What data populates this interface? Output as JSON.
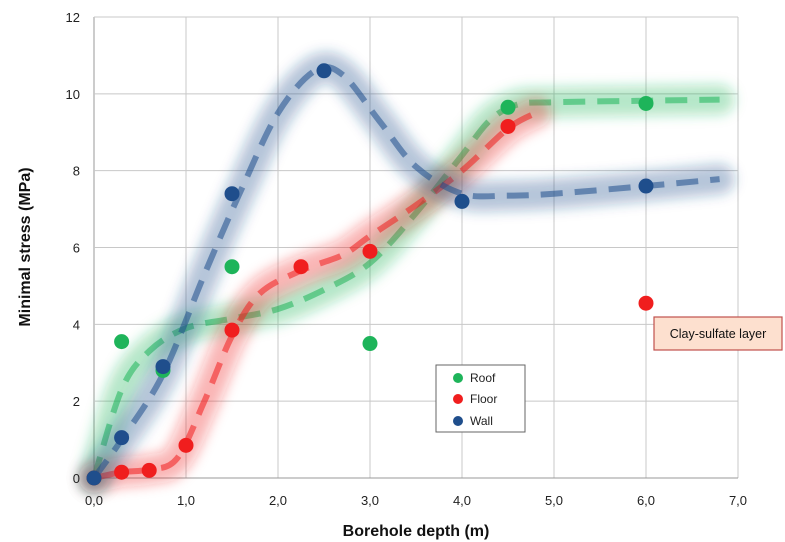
{
  "chart_data": {
    "type": "scatter",
    "xlabel": "Borehole depth (m)",
    "ylabel": "Minimal stress (MPa)",
    "xlim": [
      0,
      7
    ],
    "ylim": [
      0,
      12
    ],
    "x_ticks": [
      "0,0",
      "1,0",
      "2,0",
      "3,0",
      "4,0",
      "5,0",
      "6,0",
      "7,0"
    ],
    "y_ticks": [
      "0",
      "2",
      "4",
      "6",
      "8",
      "10",
      "12"
    ],
    "grid": true,
    "legend_position": "center-right",
    "series": [
      {
        "name": "Roof",
        "color": "#1eb45a",
        "points": [
          [
            0.0,
            0.0
          ],
          [
            0.3,
            3.55
          ],
          [
            0.75,
            2.8
          ],
          [
            1.5,
            5.5
          ],
          [
            3.0,
            3.5
          ],
          [
            4.5,
            9.65
          ],
          [
            6.0,
            9.75
          ]
        ],
        "trend": [
          [
            0.0,
            0.0
          ],
          [
            0.3,
            2.3
          ],
          [
            0.6,
            3.3
          ],
          [
            1.0,
            3.9
          ],
          [
            1.5,
            4.15
          ],
          [
            2.0,
            4.4
          ],
          [
            2.5,
            4.9
          ],
          [
            3.0,
            5.6
          ],
          [
            3.5,
            6.9
          ],
          [
            4.0,
            8.4
          ],
          [
            4.3,
            9.3
          ],
          [
            4.6,
            9.72
          ],
          [
            5.0,
            9.78
          ],
          [
            6.0,
            9.82
          ],
          [
            6.8,
            9.85
          ]
        ]
      },
      {
        "name": "Floor",
        "color": "#f01e1e",
        "points": [
          [
            0.0,
            0.0
          ],
          [
            0.3,
            0.15
          ],
          [
            0.6,
            0.2
          ],
          [
            1.0,
            0.85
          ],
          [
            1.5,
            3.85
          ],
          [
            2.25,
            5.5
          ],
          [
            3.0,
            5.9
          ],
          [
            4.5,
            9.15
          ],
          [
            6.0,
            4.55
          ]
        ],
        "trend": [
          [
            0.0,
            0.0
          ],
          [
            0.3,
            0.15
          ],
          [
            0.6,
            0.22
          ],
          [
            0.9,
            0.5
          ],
          [
            1.2,
            2.0
          ],
          [
            1.5,
            3.7
          ],
          [
            1.8,
            4.8
          ],
          [
            2.25,
            5.4
          ],
          [
            2.7,
            5.8
          ],
          [
            3.0,
            6.3
          ],
          [
            3.5,
            7.1
          ],
          [
            4.0,
            8.0
          ],
          [
            4.5,
            9.1
          ],
          [
            4.8,
            9.5
          ]
        ]
      },
      {
        "name": "Wall",
        "color": "#1f4e8c",
        "points": [
          [
            0.0,
            0.0
          ],
          [
            0.3,
            1.05
          ],
          [
            0.75,
            2.9
          ],
          [
            1.5,
            7.4
          ],
          [
            2.5,
            10.6
          ],
          [
            4.0,
            7.2
          ],
          [
            6.0,
            7.6
          ]
        ],
        "trend": [
          [
            0.0,
            0.0
          ],
          [
            0.3,
            1.0
          ],
          [
            0.75,
            2.7
          ],
          [
            1.2,
            5.3
          ],
          [
            1.6,
            7.5
          ],
          [
            2.0,
            9.5
          ],
          [
            2.4,
            10.6
          ],
          [
            2.7,
            10.5
          ],
          [
            3.1,
            9.3
          ],
          [
            3.5,
            8.1
          ],
          [
            4.0,
            7.4
          ],
          [
            4.5,
            7.35
          ],
          [
            5.0,
            7.4
          ],
          [
            6.0,
            7.6
          ],
          [
            6.8,
            7.78
          ]
        ]
      }
    ],
    "annotation": {
      "text": "Clay-sulfate layer",
      "x": 6.0,
      "y": 4.55
    }
  }
}
